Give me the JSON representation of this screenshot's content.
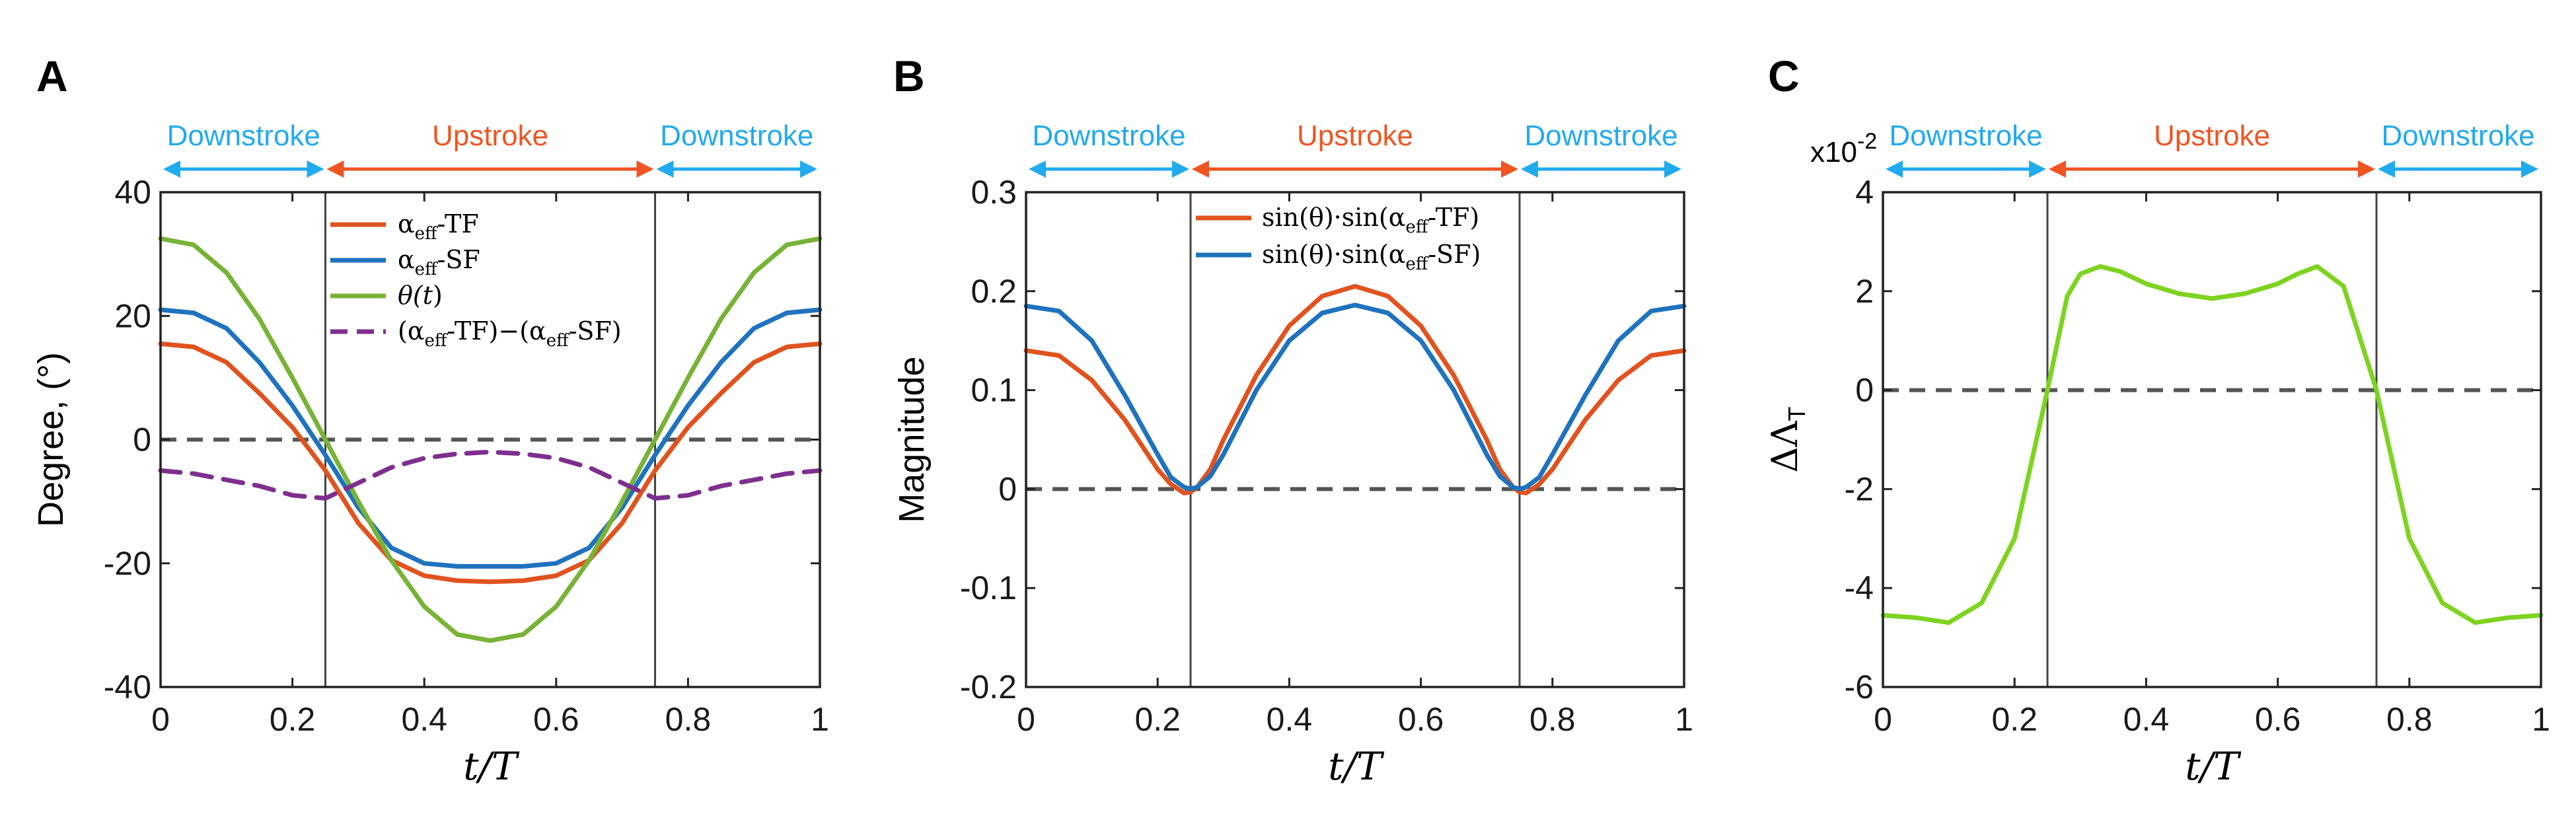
{
  "colors": {
    "tf": "#e0531f",
    "sf": "#1f72bd",
    "theta": "#78b337",
    "diff": "#7e2f8e",
    "delta": "#7ed321",
    "downstroke": "#22aaee",
    "upstroke": "#ee5522",
    "zero_line": "#555555",
    "divider": "#444444"
  },
  "stroke_labels": {
    "downstroke": "Downstroke",
    "upstroke": "Upstroke"
  },
  "chart_data": [
    {
      "panel": "A",
      "type": "line",
      "xlabel": "t/T",
      "ylabel": "Degree, (°)",
      "xlim": [
        0,
        1
      ],
      "ylim": [
        -40,
        40
      ],
      "xticks": [
        "0",
        "0.2",
        "0.4",
        "0.6",
        "0.8",
        "1"
      ],
      "yticks": [
        "-40",
        "-20",
        "0",
        "20",
        "40"
      ],
      "stroke_dividers": [
        0.25,
        0.75
      ],
      "x": [
        0,
        0.05,
        0.1,
        0.15,
        0.2,
        0.25,
        0.3,
        0.35,
        0.4,
        0.45,
        0.5,
        0.55,
        0.6,
        0.65,
        0.7,
        0.75,
        0.8,
        0.85,
        0.9,
        0.95,
        1
      ],
      "series": [
        {
          "name": "αeff-TF",
          "color_key": "tf",
          "dash": false,
          "values": [
            15.5,
            15.0,
            12.5,
            7.5,
            2.0,
            -5.0,
            -13.5,
            -19.5,
            -22.0,
            -22.8,
            -23.0,
            -22.8,
            -22.0,
            -19.5,
            -13.5,
            -5.0,
            2.0,
            7.5,
            12.5,
            15.0,
            15.5
          ]
        },
        {
          "name": "αeff-SF",
          "color_key": "sf",
          "dash": false,
          "values": [
            21.0,
            20.5,
            18.0,
            12.5,
            5.5,
            -2.5,
            -11.0,
            -17.5,
            -20.0,
            -20.5,
            -20.5,
            -20.5,
            -20.0,
            -17.5,
            -11.0,
            -2.5,
            5.5,
            12.5,
            18.0,
            20.5,
            21.0
          ]
        },
        {
          "name": "θ(t)",
          "color_key": "theta",
          "dash": false,
          "values": [
            32.5,
            31.5,
            27.0,
            19.5,
            10.0,
            0,
            -10.0,
            -19.5,
            -27.0,
            -31.5,
            -32.5,
            -31.5,
            -27.0,
            -19.5,
            -10.0,
            0,
            10.0,
            19.5,
            27.0,
            31.5,
            32.5
          ]
        },
        {
          "name": "(αeff-TF)−(αeff-SF)",
          "color_key": "diff",
          "dash": true,
          "values": [
            -5.0,
            -5.5,
            -6.5,
            -7.5,
            -9.0,
            -9.5,
            -7.0,
            -4.5,
            -3.0,
            -2.3,
            -2.0,
            -2.3,
            -3.0,
            -4.5,
            -7.0,
            -9.5,
            -9.0,
            -7.5,
            -6.5,
            -5.5,
            -5.0
          ]
        }
      ]
    },
    {
      "panel": "B",
      "type": "line",
      "xlabel": "t/T",
      "ylabel": "Magnitude",
      "xlim": [
        0,
        1
      ],
      "ylim": [
        -0.2,
        0.3
      ],
      "xticks": [
        "0",
        "0.2",
        "0.4",
        "0.6",
        "0.8",
        "1"
      ],
      "yticks": [
        "-0.2",
        "-0.1",
        "0",
        "0.1",
        "0.2",
        "0.3"
      ],
      "stroke_dividers": [
        0.25,
        0.75
      ],
      "x": [
        0,
        0.05,
        0.1,
        0.15,
        0.2,
        0.22,
        0.24,
        0.25,
        0.26,
        0.28,
        0.3,
        0.35,
        0.4,
        0.45,
        0.5,
        0.55,
        0.6,
        0.65,
        0.7,
        0.72,
        0.74,
        0.75,
        0.76,
        0.78,
        0.8,
        0.85,
        0.9,
        0.95,
        1
      ],
      "series": [
        {
          "name": "sin(θ)·sin(αeff-TF)",
          "color_key": "tf",
          "dash": false,
          "values": [
            0.14,
            0.135,
            0.11,
            0.07,
            0.02,
            0.005,
            -0.004,
            -0.003,
            0.002,
            0.02,
            0.05,
            0.115,
            0.165,
            0.195,
            0.205,
            0.195,
            0.165,
            0.115,
            0.05,
            0.02,
            0.002,
            -0.003,
            -0.004,
            0.005,
            0.02,
            0.07,
            0.11,
            0.135,
            0.14
          ]
        },
        {
          "name": "sin(θ)·sin(αeff-SF)",
          "color_key": "sf",
          "dash": false,
          "values": [
            0.185,
            0.18,
            0.15,
            0.095,
            0.035,
            0.012,
            0.002,
            0,
            0.002,
            0.013,
            0.035,
            0.1,
            0.15,
            0.178,
            0.186,
            0.178,
            0.15,
            0.1,
            0.035,
            0.013,
            0.002,
            0,
            0.002,
            0.012,
            0.035,
            0.095,
            0.15,
            0.18,
            0.185
          ]
        }
      ]
    },
    {
      "panel": "C",
      "type": "line",
      "xlabel": "t/T",
      "ylabel": "ΔΛT",
      "multiplier": "x10",
      "multiplier_exp": "-2",
      "xlim": [
        0,
        1
      ],
      "ylim": [
        -6,
        4
      ],
      "xticks": [
        "0",
        "0.2",
        "0.4",
        "0.6",
        "0.8",
        "1"
      ],
      "yticks": [
        "-6",
        "-4",
        "-2",
        "0",
        "2",
        "4"
      ],
      "stroke_dividers": [
        0.25,
        0.75
      ],
      "x": [
        0,
        0.05,
        0.1,
        0.15,
        0.2,
        0.25,
        0.28,
        0.3,
        0.33,
        0.36,
        0.4,
        0.45,
        0.5,
        0.55,
        0.6,
        0.63,
        0.66,
        0.7,
        0.75,
        0.8,
        0.85,
        0.9,
        0.95,
        1
      ],
      "series": [
        {
          "name": "ΔΛT",
          "color_key": "delta",
          "dash": false,
          "values": [
            -4.55,
            -4.6,
            -4.7,
            -4.3,
            -3.0,
            0,
            1.9,
            2.35,
            2.5,
            2.4,
            2.15,
            1.95,
            1.85,
            1.95,
            2.15,
            2.35,
            2.5,
            2.1,
            0,
            -3.0,
            -4.3,
            -4.7,
            -4.6,
            -4.55
          ]
        }
      ]
    }
  ]
}
